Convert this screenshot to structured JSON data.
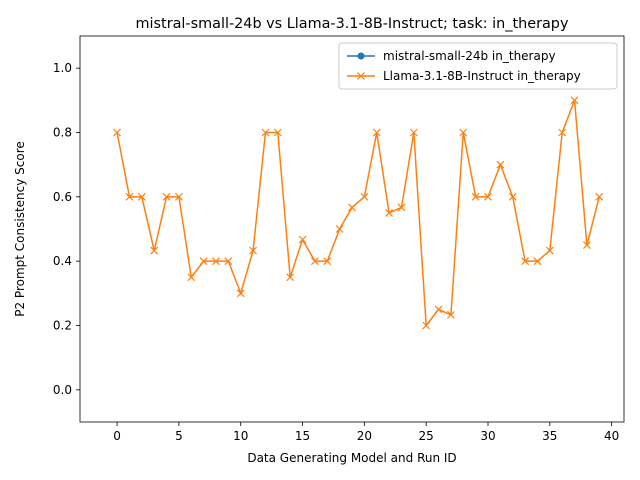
{
  "chart_data": {
    "type": "line",
    "title": "mistral-small-24b vs Llama-3.1-8B-Instruct; task: in_therapy",
    "xlabel": "Data Generating Model and Run ID",
    "ylabel": "P2 Prompt Consistency Score",
    "xlim": [
      -3,
      41
    ],
    "ylim": [
      -0.1,
      1.1
    ],
    "xticks": [
      0,
      5,
      10,
      15,
      20,
      25,
      30,
      35,
      40
    ],
    "yticks": [
      0.0,
      0.2,
      0.4,
      0.6,
      0.8,
      1.0
    ],
    "xtick_labels": [
      "0",
      "5",
      "10",
      "15",
      "20",
      "25",
      "30",
      "35",
      "40"
    ],
    "ytick_labels": [
      "0.0",
      "0.2",
      "0.4",
      "0.6",
      "0.8",
      "1.0"
    ],
    "grid": false,
    "legend_position": "top-right",
    "series": [
      {
        "name": "mistral-small-24b in_therapy",
        "color": "#1f77b4",
        "marker": "circle",
        "x": [],
        "y": []
      },
      {
        "name": "Llama-3.1-8B-Instruct in_therapy",
        "color": "#ff7f0e",
        "marker": "x",
        "x": [
          0,
          1,
          2,
          3,
          4,
          5,
          6,
          7,
          8,
          9,
          10,
          11,
          12,
          13,
          14,
          15,
          16,
          17,
          18,
          19,
          20,
          21,
          22,
          23,
          24,
          25,
          26,
          27,
          28,
          29,
          30,
          31,
          32,
          33,
          34,
          35,
          36,
          37,
          38,
          39
        ],
        "y": [
          0.8,
          0.6,
          0.6,
          0.433,
          0.6,
          0.6,
          0.35,
          0.4,
          0.4,
          0.4,
          0.3,
          0.433,
          0.8,
          0.8,
          0.35,
          0.467,
          0.4,
          0.4,
          0.5,
          0.567,
          0.6,
          0.8,
          0.55,
          0.567,
          0.8,
          0.2,
          0.25,
          0.233,
          0.8,
          0.6,
          0.6,
          0.7,
          0.6,
          0.4,
          0.4,
          0.433,
          0.8,
          0.9,
          0.45,
          0.6
        ]
      }
    ]
  }
}
